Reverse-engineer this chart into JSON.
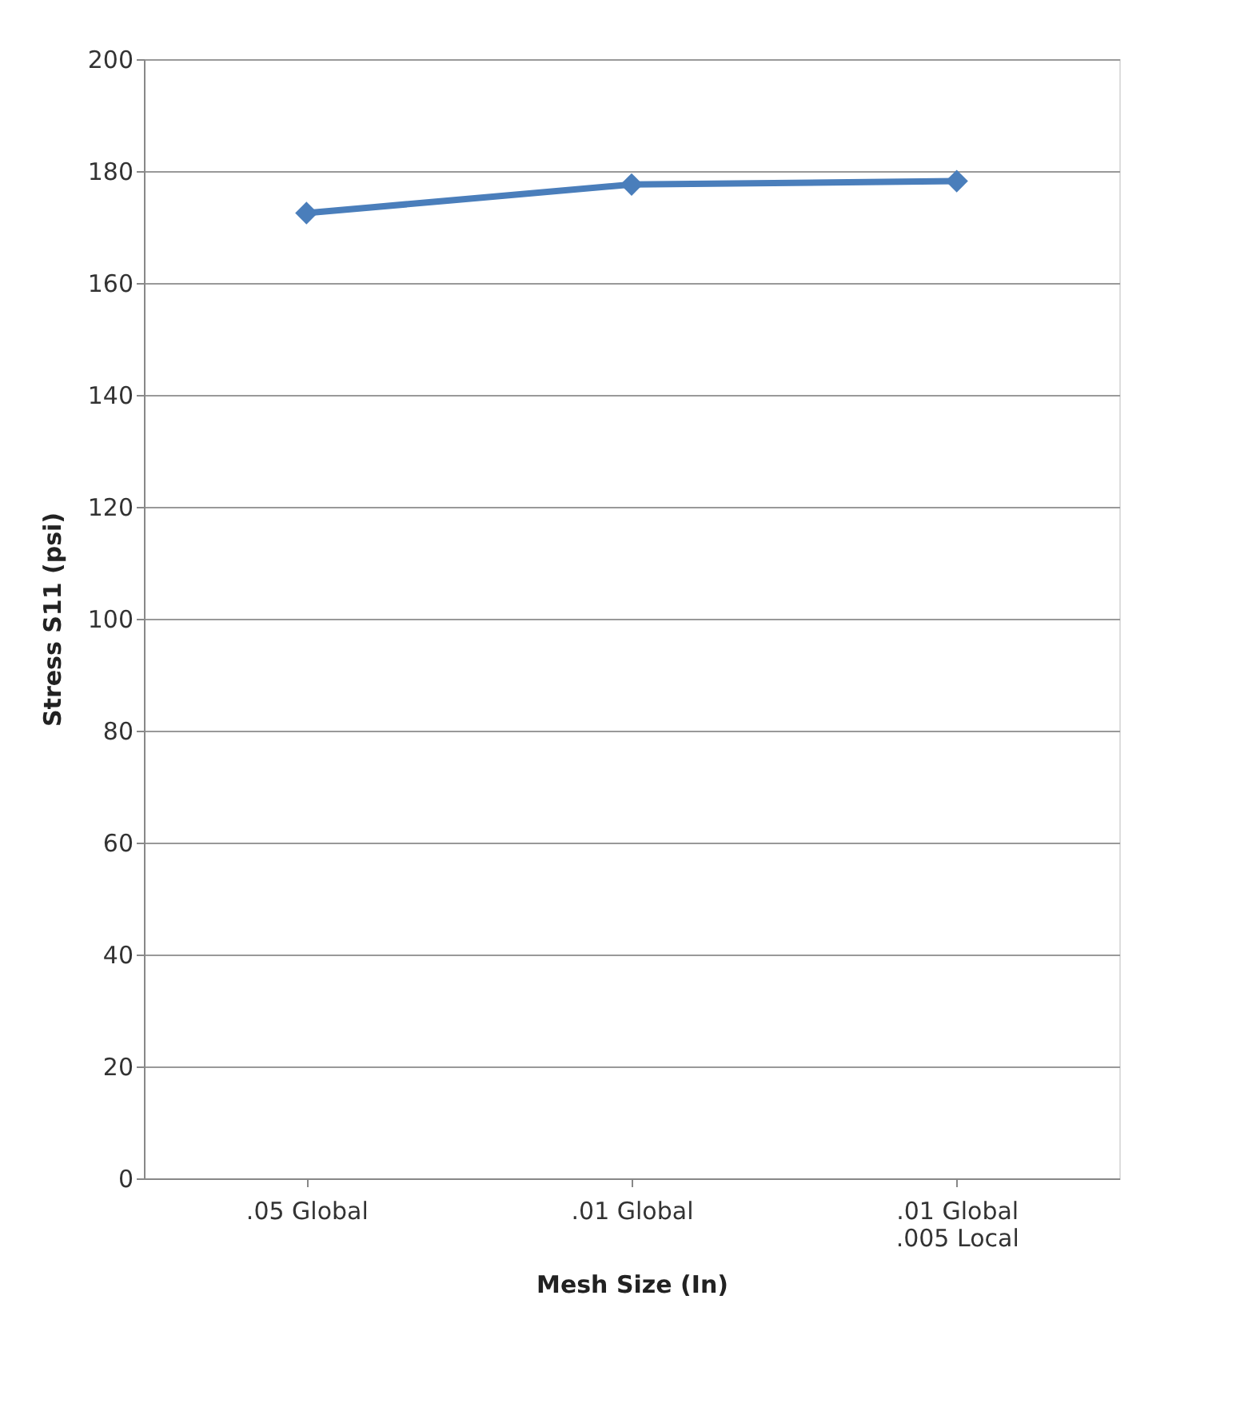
{
  "chart_data": {
    "type": "line",
    "xlabel": "Mesh Size (In)",
    "ylabel": "Stress S11 (psi)",
    "categories": [
      ".05 Global",
      ".01 Global",
      ".01 Global\n.005 Local"
    ],
    "series": [
      {
        "color": "#4a7ebb",
        "values": [
          172.5,
          177.6,
          178.2
        ]
      }
    ],
    "ylim": [
      0,
      200
    ],
    "yticks": [
      0,
      20,
      40,
      60,
      80,
      100,
      120,
      140,
      160,
      180,
      200
    ],
    "grid": "y",
    "marker": "diamond",
    "line_style": "solid"
  }
}
